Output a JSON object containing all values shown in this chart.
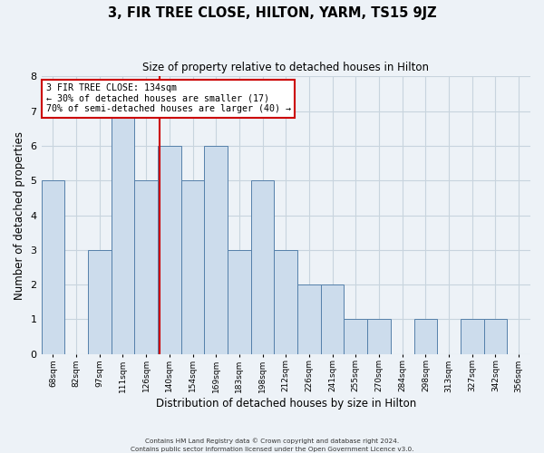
{
  "title": "3, FIR TREE CLOSE, HILTON, YARM, TS15 9JZ",
  "subtitle": "Size of property relative to detached houses in Hilton",
  "xlabel": "Distribution of detached houses by size in Hilton",
  "ylabel": "Number of detached properties",
  "footer_line1": "Contains HM Land Registry data © Crown copyright and database right 2024.",
  "footer_line2": "Contains public sector information licensed under the Open Government Licence v3.0.",
  "bin_labels": [
    "68sqm",
    "82sqm",
    "97sqm",
    "111sqm",
    "126sqm",
    "140sqm",
    "154sqm",
    "169sqm",
    "183sqm",
    "198sqm",
    "212sqm",
    "226sqm",
    "241sqm",
    "255sqm",
    "270sqm",
    "284sqm",
    "298sqm",
    "313sqm",
    "327sqm",
    "342sqm",
    "356sqm"
  ],
  "bar_heights": [
    5,
    0,
    3,
    7,
    5,
    6,
    5,
    6,
    3,
    5,
    3,
    2,
    2,
    1,
    1,
    0,
    1,
    0,
    1,
    1,
    0
  ],
  "bar_color": "#ccdcec",
  "bar_edge_color": "#5580aa",
  "grid_color": "#c8d4de",
  "background_color": "#edf2f7",
  "vline_color": "#cc0000",
  "vline_position": 4.571,
  "annotation_line1": "3 FIR TREE CLOSE: 134sqm",
  "annotation_line2": "← 30% of detached houses are smaller (17)",
  "annotation_line3": "70% of semi-detached houses are larger (40) →",
  "annotation_box_facecolor": "#ffffff",
  "annotation_box_edgecolor": "#cc0000",
  "ylim": [
    0,
    8
  ],
  "yticks": [
    0,
    1,
    2,
    3,
    4,
    5,
    6,
    7,
    8
  ]
}
